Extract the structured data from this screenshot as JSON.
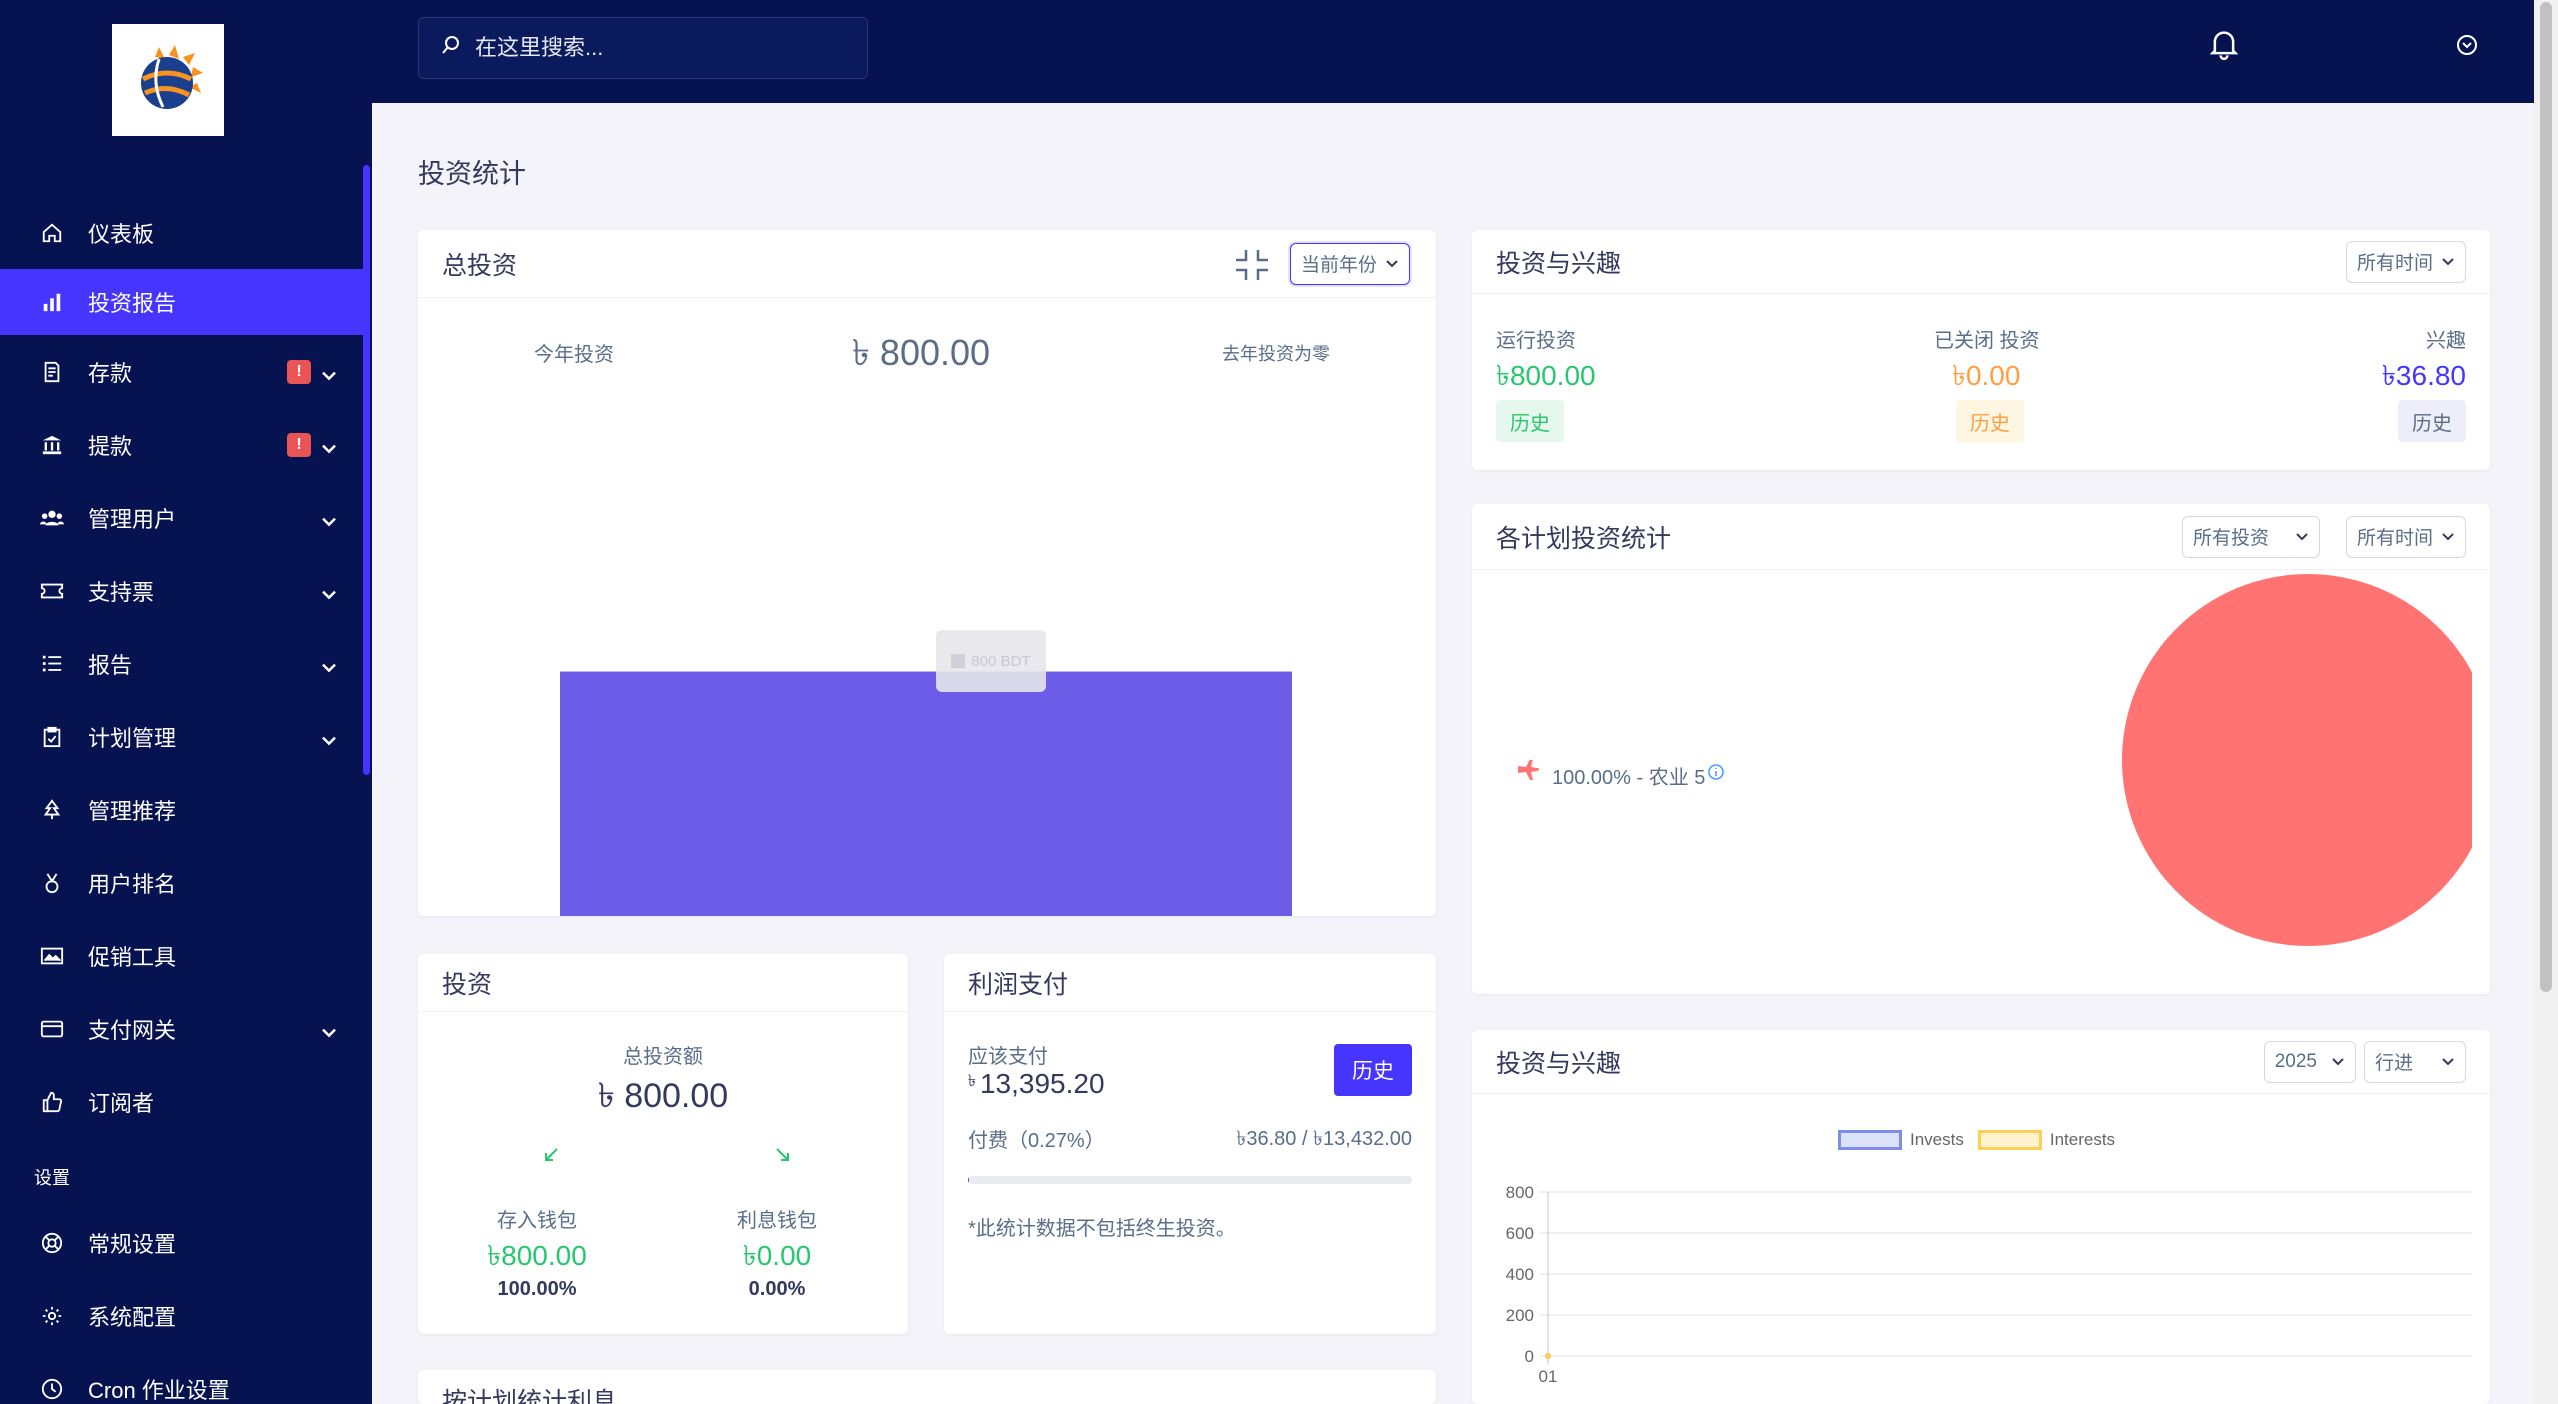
{
  "app": {
    "logo_alt": "site logo"
  },
  "search": {
    "placeholder": "在这里搜索..."
  },
  "sidebar": {
    "items": [
      {
        "label": "仪表板",
        "icon": "home-icon"
      },
      {
        "label": "投资报告",
        "icon": "bar-chart-icon",
        "active": true
      },
      {
        "label": "存款",
        "icon": "receipt-icon",
        "badge": "!"
      },
      {
        "label": "提款",
        "icon": "bank-icon",
        "badge": "!"
      },
      {
        "label": "管理用户",
        "icon": "users-icon"
      },
      {
        "label": "支持票",
        "icon": "ticket-icon"
      },
      {
        "label": "报告",
        "icon": "list-icon"
      },
      {
        "label": "计划管理",
        "icon": "clipboard-icon"
      },
      {
        "label": "管理推荐",
        "icon": "tree-icon"
      },
      {
        "label": "用户排名",
        "icon": "medal-icon"
      },
      {
        "label": "促销工具",
        "icon": "image-icon"
      },
      {
        "label": "支付网关",
        "icon": "credit-card-icon"
      },
      {
        "label": "订阅者",
        "icon": "thumbs-up-icon"
      }
    ],
    "section": "设置",
    "settings": [
      {
        "label": "常规设置",
        "icon": "life-ring-icon"
      },
      {
        "label": "系统配置",
        "icon": "gear-icon"
      },
      {
        "label": "Cron 作业设置",
        "icon": "clock-icon"
      }
    ]
  },
  "page": {
    "title": "投资统计"
  },
  "total_invest": {
    "title": "总投资",
    "period": "当前年份",
    "this_year_label": "今年投资",
    "amount": "৳ 800.00",
    "last_year_note": "去年投资为零",
    "tooltip": "800 BDT"
  },
  "invest_interest": {
    "title": "投资与兴趣",
    "period": "所有时间",
    "running_label": "运行投资",
    "running_value": "৳800.00",
    "closed_label": "已关闭 投资",
    "closed_value": "৳0.00",
    "interest_label": "兴趣",
    "interest_value": "৳36.80",
    "history": "历史"
  },
  "plan_stats": {
    "title": "各计划投资统计",
    "filter1": "所有投资",
    "filter2": "所有时间",
    "legend": "100.00% - 农业 5",
    "slice_color": "#ff7373"
  },
  "invest_box": {
    "title": "投资",
    "total_label": "总投资额",
    "total_value": "৳ 800.00",
    "deposit_label": "存入钱包",
    "deposit_value": "৳800.00",
    "deposit_pct": "100.00%",
    "interest_label": "利息钱包",
    "interest_value": "৳0.00",
    "interest_pct": "0.00%"
  },
  "profit": {
    "title": "利润支付",
    "due_label": "应该支付",
    "due_value": "13,395.20",
    "currency": "৳",
    "history_button": "历史",
    "fee_label": "付费（0.27%）",
    "fee_value": "৳36.80 / ৳13,432.00",
    "note": "*此统计数据不包括终生投资。"
  },
  "invest_chart": {
    "title": "投资与兴趣",
    "year": "2025",
    "mode": "行进",
    "legend_invests": "Invests",
    "legend_interests": "Interests"
  },
  "bottom_card": {
    "title": "按计划统计利息"
  },
  "chart_data": [
    {
      "type": "bar",
      "categories": [
        ""
      ],
      "values": [
        800
      ],
      "title": "",
      "ylim": [
        0,
        800
      ]
    },
    {
      "type": "pie",
      "labels": [
        "农业 5"
      ],
      "values": [
        100
      ]
    },
    {
      "type": "line",
      "x": [
        "01"
      ],
      "series": [
        {
          "name": "Invests",
          "values": [
            0
          ]
        },
        {
          "name": "Interests",
          "values": [
            0
          ]
        }
      ],
      "yticks": [
        "800",
        "600",
        "400",
        "200",
        "0"
      ],
      "ylim": [
        0,
        800
      ]
    }
  ]
}
